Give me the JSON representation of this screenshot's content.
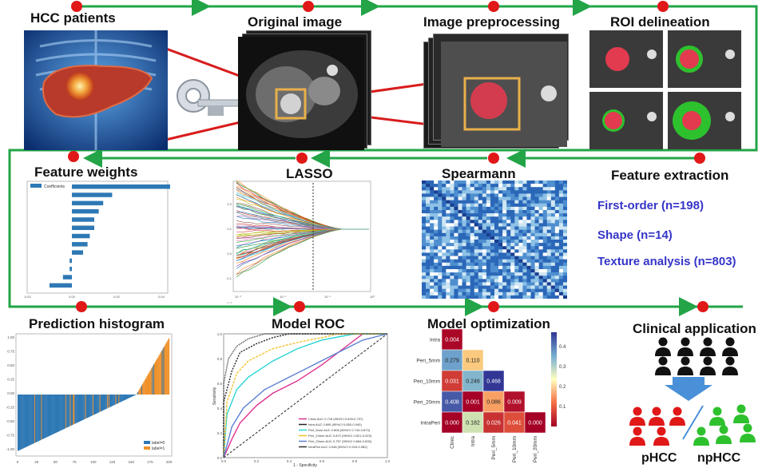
{
  "steps": {
    "hcc": "HCC patients",
    "original": "Original image",
    "preprocess": "Image preprocessing",
    "roi": "ROI delineation",
    "extraction": "Feature extraction",
    "spearman": "Spearmann",
    "lasso": "LASSO",
    "weights": "Feature weights",
    "histogram": "Prediction histogram",
    "roc": "Model ROC",
    "optimization": "Model  optimization",
    "clinical": "Clinical application"
  },
  "features": {
    "first_order": "First-order  (n=198)",
    "shape": "Shape (n=14)",
    "texture": "Texture analysis  (n=803)"
  },
  "outcomes": {
    "phcc": "pHCC",
    "nphcc": "npHCC"
  },
  "colors": {
    "flow": "#22a447",
    "node": "#e01818",
    "arrow": "#d81c1c",
    "roi_box": "#e8b04a",
    "bar": "#2e78b5",
    "orange": "#f0922b",
    "ct_bg": "#101010"
  },
  "weights_chart": {
    "legend": "Coefficients",
    "values": [
      0.045,
      0.018,
      0.014,
      0.012,
      0.01,
      0.01,
      0.008,
      0.007,
      0.005,
      -0.001,
      -0.001,
      -0.004,
      -0.01
    ],
    "xticks": [
      "-0.02",
      "0.00",
      "0.02",
      "0.04",
      "0.06"
    ]
  },
  "lasso_chart": {
    "yticks": [
      "0.2",
      "0.1",
      "0.0",
      "-0.1",
      "-0.2"
    ],
    "xticks": [
      "10⁻³",
      "10⁻²",
      "10⁻¹",
      "10⁰"
    ]
  },
  "histogram_chart": {
    "legend": [
      "label=0",
      "label=1"
    ],
    "yticks": [
      "1.00",
      "0.75",
      "0.50",
      "0.25",
      "0.00",
      "-0.25",
      "-0.50",
      "-0.75",
      "-1.00"
    ],
    "xticks": [
      "0",
      "25",
      "50",
      "75",
      "100",
      "125",
      "150",
      "175",
      "200"
    ]
  },
  "roc_chart": {
    "xlabel": "1 - Specificity",
    "ylabel": "Sensitivity",
    "xticks": [
      "0.0",
      "0.2",
      "0.4",
      "0.6",
      "0.8",
      "1.0"
    ],
    "yticks": [
      "1.0",
      "0.8",
      "0.6",
      "0.4",
      "0.2",
      "0.0"
    ],
    "legend": [
      {
        "label": "Clinic AUC 0.718 (95%CI 0.639-0.797)",
        "color": "#e0308e"
      },
      {
        "label": "Intra AUC 0.895 (95%CI 0.850-0.940)",
        "color": "#222222"
      },
      {
        "label": "Peri_5mm AUC 0.808 (95%CI 0.743-0.873)",
        "color": "#2bd4d4"
      },
      {
        "label": "Peri_10mm AUC 0.872 (95%CI 0.821-0.923)",
        "color": "#f2c12b"
      },
      {
        "label": "Peri_20mm AUC 0.757 (95%CI 0.684-0.830)",
        "color": "#5a7fd2"
      },
      {
        "label": "IntraPeri AUC 0.948 (95%CI 0.915-0.982)",
        "color": "#333333"
      }
    ]
  },
  "matrix": {
    "rows": [
      "Intra",
      "Peri_5mm",
      "Peri_10mm",
      "Peri_20mm",
      "IntraPeri"
    ],
    "cols": [
      "Clinic",
      "Intra",
      "Peri_5mm",
      "Peri_10mm",
      "Peri_20mm"
    ],
    "cells": [
      [
        "0.004",
        null,
        null,
        null,
        null
      ],
      [
        "0.279",
        "0.110",
        null,
        null,
        null
      ],
      [
        "0.031",
        "0.246",
        "0.468",
        null,
        null
      ],
      [
        "0.408",
        "0.001",
        "0.086",
        "0.009",
        null
      ],
      [
        "0.000",
        "0.182",
        "0.026",
        "0.041",
        "0.000"
      ]
    ],
    "colorbar_ticks": [
      "0.4",
      "0.3",
      "0.2",
      "0.1"
    ]
  }
}
